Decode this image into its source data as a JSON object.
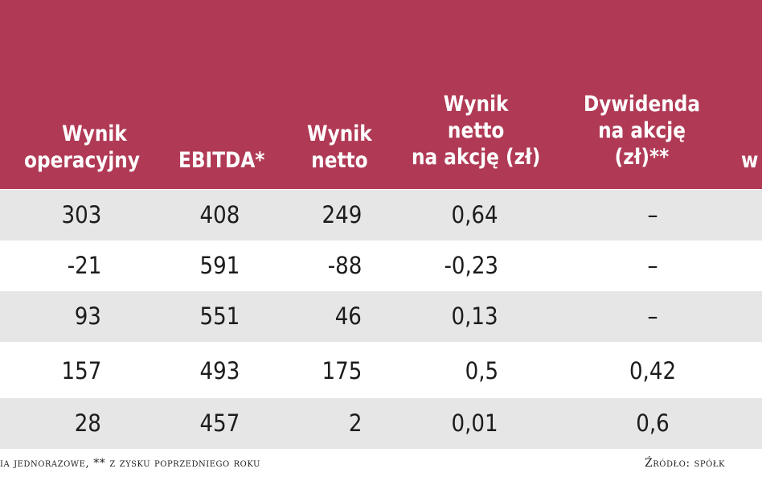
{
  "headers": {
    "operating": [
      "Wynik",
      "operacyjny"
    ],
    "ebitda": [
      "EBITDA*"
    ],
    "net": [
      "Wynik",
      "netto"
    ],
    "eps": [
      "Wynik",
      "netto",
      "na akcję (zł)"
    ],
    "dividend": [
      "Dywidenda",
      "na akcję",
      "(zł)**"
    ],
    "partial": [
      "w"
    ]
  },
  "rows": [
    {
      "operating": "303",
      "ebitda": "408",
      "net": "249",
      "eps": "0,64",
      "dividend": "–"
    },
    {
      "operating": "-21",
      "ebitda": "591",
      "net": "-88",
      "eps": "-0,23",
      "dividend": "–"
    },
    {
      "operating": "93",
      "ebitda": "551",
      "net": "46",
      "eps": "0,13",
      "dividend": "–"
    },
    {
      "operating": "157",
      "ebitda": "493",
      "net": "175",
      "eps": "0,5",
      "dividend": "0,42"
    },
    {
      "operating": "28",
      "ebitda": "457",
      "net": "2",
      "eps": "0,01",
      "dividend": "0,6"
    }
  ],
  "footer": {
    "note": "ia jednorazowe, ** z zysku poprzedniego roku",
    "source": "Źródło: spółk"
  },
  "colors": {
    "header_bg": "#b03a55",
    "row_shade": "#e6e6e6",
    "text": "#1c1c1c"
  }
}
